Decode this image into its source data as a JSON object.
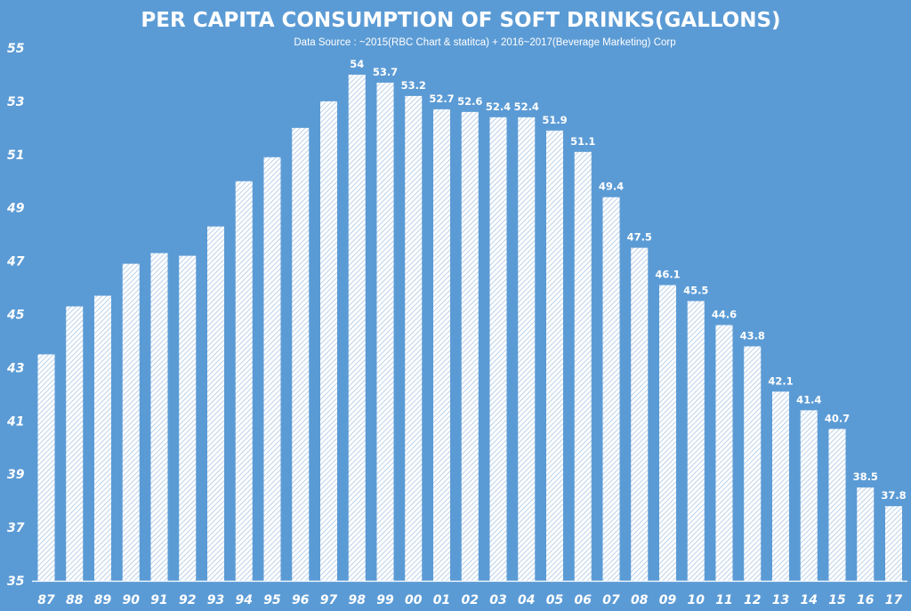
{
  "colors": {
    "background": "#5B9BD5",
    "bar_fill": "#ffffff",
    "bar_hatch": "#9DBFE3",
    "text": "#ffffff",
    "axis": "#ffffff"
  },
  "chart_data": {
    "type": "bar",
    "title": "PER CAPITA CONSUMPTION OF SOFT DRINKS(GALLONS)",
    "subtitle": "Data Source :  ~2015(RBC Chart & statitca)  + 2016~2017(Beverage Marketing) Corp",
    "xlabel": "",
    "ylabel": "",
    "ylim": [
      35,
      55
    ],
    "yticks": [
      35,
      37,
      39,
      41,
      43,
      45,
      47,
      49,
      51,
      53,
      55
    ],
    "grid": false,
    "legend": "none",
    "categories": [
      "87",
      "88",
      "89",
      "90",
      "91",
      "92",
      "93",
      "94",
      "95",
      "96",
      "97",
      "98",
      "99",
      "00",
      "01",
      "02",
      "03",
      "04",
      "05",
      "06",
      "07",
      "08",
      "09",
      "10",
      "11",
      "12",
      "13",
      "14",
      "15",
      "16",
      "17"
    ],
    "values": [
      43.5,
      45.3,
      45.7,
      46.9,
      47.3,
      47.2,
      48.3,
      50.0,
      50.9,
      52.0,
      53.0,
      54,
      53.7,
      53.2,
      52.7,
      52.6,
      52.4,
      52.4,
      51.9,
      51.1,
      49.4,
      47.5,
      46.1,
      45.5,
      44.6,
      43.8,
      42.1,
      41.4,
      40.7,
      38.5,
      37.8
    ],
    "data_labels": [
      null,
      null,
      null,
      null,
      null,
      null,
      null,
      null,
      null,
      null,
      null,
      "54",
      "53.7",
      "53.2",
      "52.7",
      "52.6",
      "52.4",
      "52.4",
      "51.9",
      "51.1",
      "49.4",
      "47.5",
      "46.1",
      "45.5",
      "44.6",
      "43.8",
      "42.1",
      "41.4",
      "40.7",
      "38.5",
      "37.8"
    ]
  }
}
